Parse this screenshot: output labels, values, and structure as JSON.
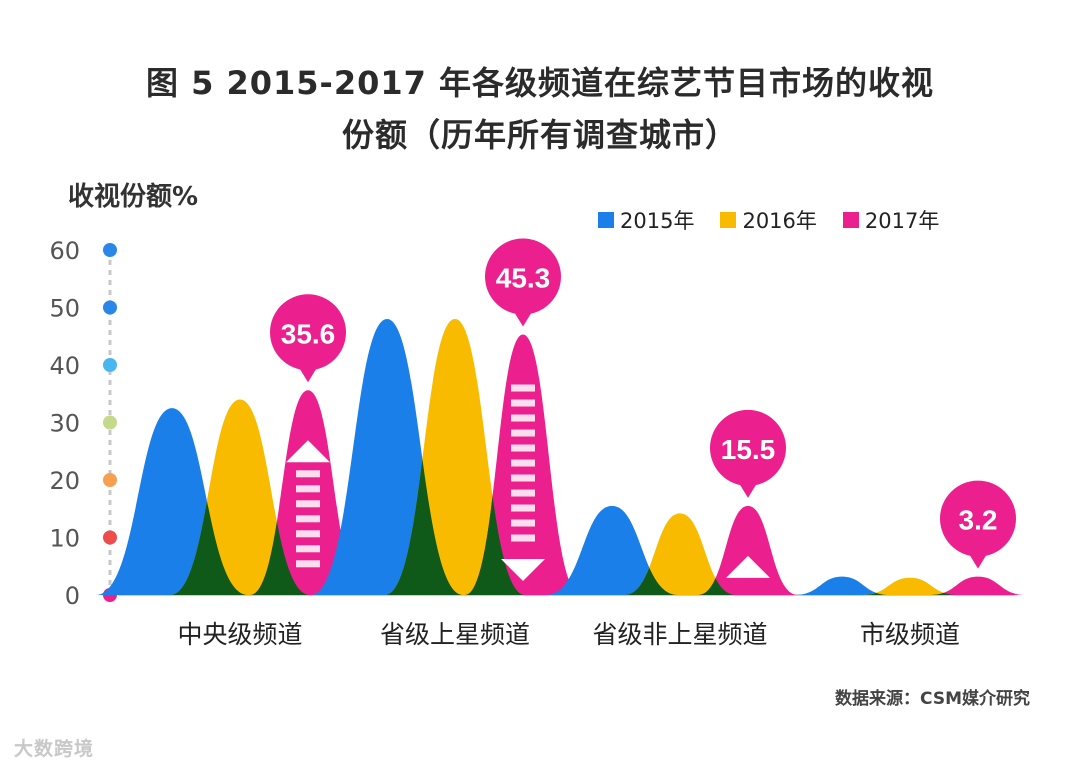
{
  "title_line1": "图 5 2015-2017 年各级频道在综艺节目市场的收视",
  "title_line2": "份额（历年所有调查城市）",
  "watermark": "大数跨境",
  "source": "数据来源：CSM媒介研究",
  "colors": {
    "s2015": "#1a7fe8",
    "s2016": "#f9bb00",
    "s2017": "#ec1f8e",
    "overlap": "#0f5a18"
  },
  "chart_data": {
    "type": "area",
    "ylabel": "收视份额%",
    "ylim": [
      0,
      60
    ],
    "yticks": [
      0,
      10,
      20,
      30,
      40,
      50,
      60
    ],
    "tick_dot_colors": [
      "#ec1f8e",
      "#ef4c4c",
      "#f6a050",
      "#c5d98a",
      "#4ab6ef",
      "#2a86e8",
      "#2a86e8"
    ],
    "categories": [
      "中央级频道",
      "省级上星频道",
      "省级非上星频道",
      "市级频道"
    ],
    "series": [
      {
        "name": "2015年",
        "values": [
          32.5,
          48.0,
          15.5,
          3.2
        ]
      },
      {
        "name": "2016年",
        "values": [
          34.0,
          48.0,
          14.2,
          3.0
        ]
      },
      {
        "name": "2017年",
        "values": [
          35.6,
          45.3,
          15.5,
          3.2
        ]
      }
    ],
    "data_labels": [
      "35.6",
      "45.3",
      "15.5",
      "3.2"
    ],
    "legend_position": "top-right"
  }
}
